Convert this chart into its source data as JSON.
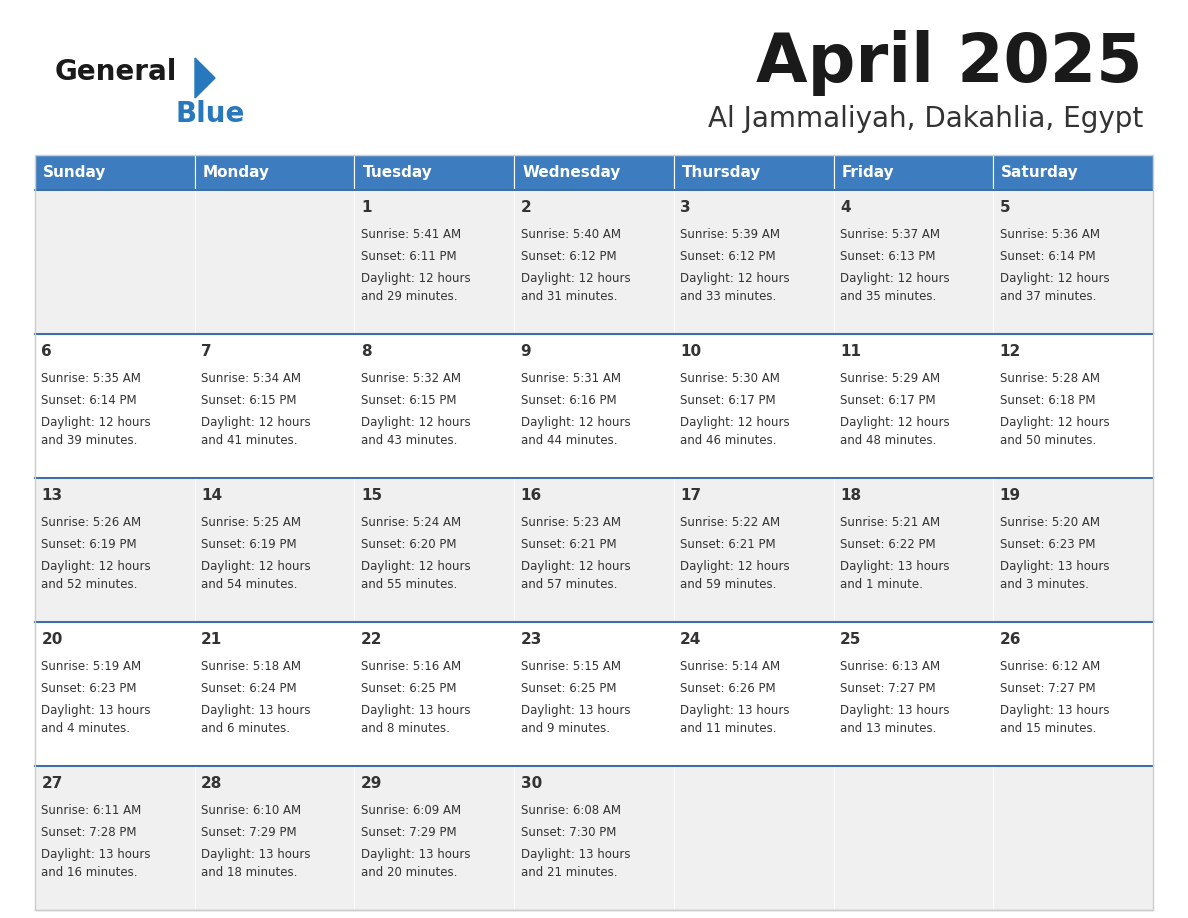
{
  "title": "April 2025",
  "subtitle": "Al Jammaliyah, Dakahlia, Egypt",
  "days_of_week": [
    "Sunday",
    "Monday",
    "Tuesday",
    "Wednesday",
    "Thursday",
    "Friday",
    "Saturday"
  ],
  "header_bg": "#3d7dbf",
  "header_text_color": "#ffffff",
  "row_bg_odd": "#f0f0f0",
  "row_bg_even": "#ffffff",
  "divider_color": "#3d6fa0",
  "cell_text_color": "#333333",
  "logo_general_color": "#1a1a1a",
  "logo_blue_color": "#2878be",
  "logo_triangle_color": "#2878be",
  "title_color": "#1a1a1a",
  "subtitle_color": "#333333",
  "weeks": [
    [
      {
        "day": "",
        "sunrise": "",
        "sunset": "",
        "daylight": ""
      },
      {
        "day": "",
        "sunrise": "",
        "sunset": "",
        "daylight": ""
      },
      {
        "day": "1",
        "sunrise": "Sunrise: 5:41 AM",
        "sunset": "Sunset: 6:11 PM",
        "daylight": "Daylight: 12 hours\nand 29 minutes."
      },
      {
        "day": "2",
        "sunrise": "Sunrise: 5:40 AM",
        "sunset": "Sunset: 6:12 PM",
        "daylight": "Daylight: 12 hours\nand 31 minutes."
      },
      {
        "day": "3",
        "sunrise": "Sunrise: 5:39 AM",
        "sunset": "Sunset: 6:12 PM",
        "daylight": "Daylight: 12 hours\nand 33 minutes."
      },
      {
        "day": "4",
        "sunrise": "Sunrise: 5:37 AM",
        "sunset": "Sunset: 6:13 PM",
        "daylight": "Daylight: 12 hours\nand 35 minutes."
      },
      {
        "day": "5",
        "sunrise": "Sunrise: 5:36 AM",
        "sunset": "Sunset: 6:14 PM",
        "daylight": "Daylight: 12 hours\nand 37 minutes."
      }
    ],
    [
      {
        "day": "6",
        "sunrise": "Sunrise: 5:35 AM",
        "sunset": "Sunset: 6:14 PM",
        "daylight": "Daylight: 12 hours\nand 39 minutes."
      },
      {
        "day": "7",
        "sunrise": "Sunrise: 5:34 AM",
        "sunset": "Sunset: 6:15 PM",
        "daylight": "Daylight: 12 hours\nand 41 minutes."
      },
      {
        "day": "8",
        "sunrise": "Sunrise: 5:32 AM",
        "sunset": "Sunset: 6:15 PM",
        "daylight": "Daylight: 12 hours\nand 43 minutes."
      },
      {
        "day": "9",
        "sunrise": "Sunrise: 5:31 AM",
        "sunset": "Sunset: 6:16 PM",
        "daylight": "Daylight: 12 hours\nand 44 minutes."
      },
      {
        "day": "10",
        "sunrise": "Sunrise: 5:30 AM",
        "sunset": "Sunset: 6:17 PM",
        "daylight": "Daylight: 12 hours\nand 46 minutes."
      },
      {
        "day": "11",
        "sunrise": "Sunrise: 5:29 AM",
        "sunset": "Sunset: 6:17 PM",
        "daylight": "Daylight: 12 hours\nand 48 minutes."
      },
      {
        "day": "12",
        "sunrise": "Sunrise: 5:28 AM",
        "sunset": "Sunset: 6:18 PM",
        "daylight": "Daylight: 12 hours\nand 50 minutes."
      }
    ],
    [
      {
        "day": "13",
        "sunrise": "Sunrise: 5:26 AM",
        "sunset": "Sunset: 6:19 PM",
        "daylight": "Daylight: 12 hours\nand 52 minutes."
      },
      {
        "day": "14",
        "sunrise": "Sunrise: 5:25 AM",
        "sunset": "Sunset: 6:19 PM",
        "daylight": "Daylight: 12 hours\nand 54 minutes."
      },
      {
        "day": "15",
        "sunrise": "Sunrise: 5:24 AM",
        "sunset": "Sunset: 6:20 PM",
        "daylight": "Daylight: 12 hours\nand 55 minutes."
      },
      {
        "day": "16",
        "sunrise": "Sunrise: 5:23 AM",
        "sunset": "Sunset: 6:21 PM",
        "daylight": "Daylight: 12 hours\nand 57 minutes."
      },
      {
        "day": "17",
        "sunrise": "Sunrise: 5:22 AM",
        "sunset": "Sunset: 6:21 PM",
        "daylight": "Daylight: 12 hours\nand 59 minutes."
      },
      {
        "day": "18",
        "sunrise": "Sunrise: 5:21 AM",
        "sunset": "Sunset: 6:22 PM",
        "daylight": "Daylight: 13 hours\nand 1 minute."
      },
      {
        "day": "19",
        "sunrise": "Sunrise: 5:20 AM",
        "sunset": "Sunset: 6:23 PM",
        "daylight": "Daylight: 13 hours\nand 3 minutes."
      }
    ],
    [
      {
        "day": "20",
        "sunrise": "Sunrise: 5:19 AM",
        "sunset": "Sunset: 6:23 PM",
        "daylight": "Daylight: 13 hours\nand 4 minutes."
      },
      {
        "day": "21",
        "sunrise": "Sunrise: 5:18 AM",
        "sunset": "Sunset: 6:24 PM",
        "daylight": "Daylight: 13 hours\nand 6 minutes."
      },
      {
        "day": "22",
        "sunrise": "Sunrise: 5:16 AM",
        "sunset": "Sunset: 6:25 PM",
        "daylight": "Daylight: 13 hours\nand 8 minutes."
      },
      {
        "day": "23",
        "sunrise": "Sunrise: 5:15 AM",
        "sunset": "Sunset: 6:25 PM",
        "daylight": "Daylight: 13 hours\nand 9 minutes."
      },
      {
        "day": "24",
        "sunrise": "Sunrise: 5:14 AM",
        "sunset": "Sunset: 6:26 PM",
        "daylight": "Daylight: 13 hours\nand 11 minutes."
      },
      {
        "day": "25",
        "sunrise": "Sunrise: 6:13 AM",
        "sunset": "Sunset: 7:27 PM",
        "daylight": "Daylight: 13 hours\nand 13 minutes."
      },
      {
        "day": "26",
        "sunrise": "Sunrise: 6:12 AM",
        "sunset": "Sunset: 7:27 PM",
        "daylight": "Daylight: 13 hours\nand 15 minutes."
      }
    ],
    [
      {
        "day": "27",
        "sunrise": "Sunrise: 6:11 AM",
        "sunset": "Sunset: 7:28 PM",
        "daylight": "Daylight: 13 hours\nand 16 minutes."
      },
      {
        "day": "28",
        "sunrise": "Sunrise: 6:10 AM",
        "sunset": "Sunset: 7:29 PM",
        "daylight": "Daylight: 13 hours\nand 18 minutes."
      },
      {
        "day": "29",
        "sunrise": "Sunrise: 6:09 AM",
        "sunset": "Sunset: 7:29 PM",
        "daylight": "Daylight: 13 hours\nand 20 minutes."
      },
      {
        "day": "30",
        "sunrise": "Sunrise: 6:08 AM",
        "sunset": "Sunset: 7:30 PM",
        "daylight": "Daylight: 13 hours\nand 21 minutes."
      },
      {
        "day": "",
        "sunrise": "",
        "sunset": "",
        "daylight": ""
      },
      {
        "day": "",
        "sunrise": "",
        "sunset": "",
        "daylight": ""
      },
      {
        "day": "",
        "sunrise": "",
        "sunset": "",
        "daylight": ""
      }
    ]
  ]
}
